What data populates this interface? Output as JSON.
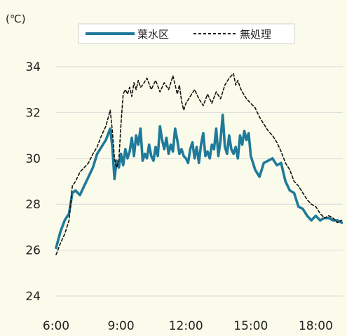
{
  "chart_data": {
    "type": "line",
    "unit_label": "(℃)",
    "ylim": [
      24,
      34
    ],
    "yticks": [
      "24",
      "26",
      "28",
      "30",
      "32",
      "34"
    ],
    "xlim": [
      6,
      19.25
    ],
    "xticks": [
      "6:00",
      "9:00",
      "12:00",
      "15:00",
      "18:00"
    ],
    "grid": true,
    "legend_position": "top",
    "series": [
      {
        "name": "葉水区",
        "color": "#1f7a9a",
        "style": "solid",
        "x": [
          6.0,
          6.2,
          6.4,
          6.6,
          6.75,
          6.9,
          7.1,
          7.3,
          7.5,
          7.7,
          7.9,
          8.1,
          8.3,
          8.5,
          8.6,
          8.7,
          8.8,
          8.9,
          9.0,
          9.1,
          9.2,
          9.3,
          9.4,
          9.5,
          9.6,
          9.7,
          9.8,
          9.9,
          10.0,
          10.1,
          10.2,
          10.3,
          10.4,
          10.5,
          10.6,
          10.7,
          10.8,
          10.9,
          11.0,
          11.1,
          11.2,
          11.3,
          11.4,
          11.5,
          11.6,
          11.7,
          11.8,
          11.9,
          12.0,
          12.1,
          12.2,
          12.3,
          12.4,
          12.5,
          12.6,
          12.7,
          12.8,
          12.9,
          13.0,
          13.1,
          13.2,
          13.3,
          13.4,
          13.5,
          13.6,
          13.7,
          13.8,
          13.9,
          14.0,
          14.1,
          14.2,
          14.3,
          14.4,
          14.5,
          14.6,
          14.7,
          14.8,
          14.9,
          15.0,
          15.2,
          15.4,
          15.6,
          15.8,
          16.0,
          16.2,
          16.4,
          16.6,
          16.8,
          17.0,
          17.2,
          17.4,
          17.6,
          17.8,
          18.0,
          18.2,
          18.4,
          18.6,
          18.8,
          19.0,
          19.2
        ],
        "values": [
          26.1,
          26.8,
          27.3,
          27.6,
          28.5,
          28.6,
          28.4,
          28.8,
          29.2,
          29.6,
          30.2,
          30.5,
          30.8,
          31.3,
          30.5,
          29.1,
          29.9,
          29.6,
          30.2,
          29.7,
          30.4,
          30.0,
          30.3,
          30.9,
          30.1,
          31.0,
          30.6,
          31.3,
          29.9,
          30.2,
          30.0,
          30.6,
          30.1,
          29.9,
          30.5,
          30.1,
          31.4,
          30.8,
          30.4,
          30.9,
          30.2,
          30.6,
          30.3,
          31.3,
          30.8,
          30.2,
          30.4,
          30.1,
          30.0,
          29.8,
          30.4,
          30.7,
          30.0,
          30.5,
          29.8,
          30.6,
          31.1,
          30.1,
          30.3,
          30.0,
          30.6,
          30.4,
          31.3,
          30.1,
          30.8,
          31.9,
          30.5,
          30.2,
          31.0,
          30.4,
          30.2,
          30.5,
          30.0,
          31.0,
          30.6,
          31.2,
          30.8,
          31.1,
          30.1,
          29.5,
          29.2,
          29.8,
          29.9,
          30.0,
          29.7,
          29.8,
          29.0,
          28.6,
          28.5,
          27.9,
          27.8,
          27.5,
          27.3,
          27.5,
          27.3,
          27.4,
          27.4,
          27.3,
          27.3,
          27.2
        ]
      },
      {
        "name": "無処理",
        "color": "#111111",
        "style": "dashed",
        "x": [
          6.0,
          6.2,
          6.4,
          6.6,
          6.75,
          6.9,
          7.1,
          7.3,
          7.5,
          7.7,
          7.9,
          8.1,
          8.3,
          8.5,
          8.6,
          8.7,
          8.8,
          8.9,
          9.0,
          9.1,
          9.2,
          9.3,
          9.4,
          9.5,
          9.6,
          9.7,
          9.8,
          9.9,
          10.0,
          10.2,
          10.4,
          10.6,
          10.8,
          11.0,
          11.2,
          11.4,
          11.6,
          11.7,
          11.8,
          11.9,
          12.0,
          12.2,
          12.4,
          12.6,
          12.8,
          13.0,
          13.2,
          13.4,
          13.6,
          13.8,
          14.0,
          14.2,
          14.3,
          14.4,
          14.5,
          14.6,
          14.8,
          15.0,
          15.2,
          15.4,
          15.6,
          15.8,
          16.0,
          16.2,
          16.4,
          16.6,
          16.8,
          17.0,
          17.2,
          17.4,
          17.6,
          17.8,
          18.0,
          18.2,
          18.4,
          18.6,
          18.8,
          19.0,
          19.2
        ],
        "values": [
          25.8,
          26.3,
          26.7,
          27.3,
          28.8,
          29.0,
          29.4,
          29.6,
          29.8,
          30.2,
          30.5,
          31.0,
          31.4,
          32.1,
          31.2,
          30.0,
          29.6,
          29.9,
          31.5,
          32.8,
          33.0,
          32.8,
          33.1,
          32.7,
          33.3,
          33.0,
          33.4,
          33.1,
          33.2,
          33.5,
          33.0,
          33.4,
          32.9,
          33.3,
          33.0,
          33.6,
          32.8,
          33.2,
          32.5,
          32.1,
          32.4,
          32.7,
          33.0,
          32.6,
          32.3,
          32.8,
          32.4,
          32.9,
          32.6,
          33.2,
          33.5,
          33.7,
          33.2,
          33.4,
          33.1,
          32.9,
          32.6,
          32.4,
          32.2,
          31.8,
          31.5,
          31.2,
          31.0,
          30.7,
          30.3,
          29.8,
          29.5,
          29.0,
          28.8,
          28.5,
          28.2,
          28.0,
          27.9,
          27.6,
          27.4,
          27.5,
          27.4,
          27.2,
          27.3
        ]
      }
    ]
  }
}
